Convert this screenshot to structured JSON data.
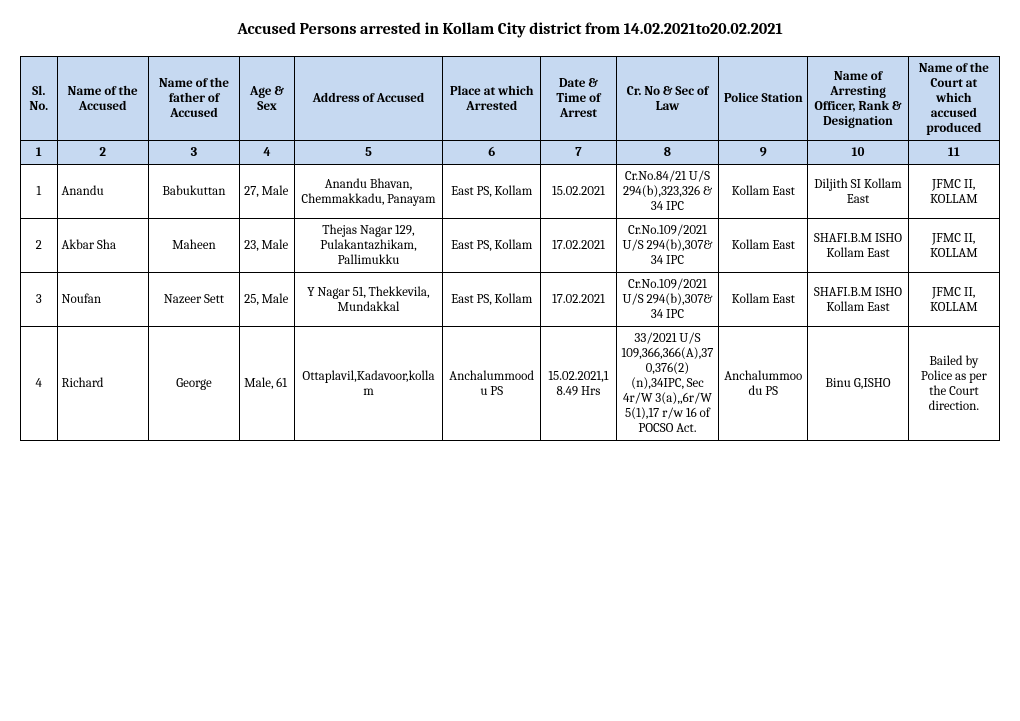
{
  "title": "Accused Persons arrested in   Kollam City   district from  14.02.2021to20.02.2021",
  "columns": [
    "Sl. No.",
    "Name of the Accused",
    "Name of the father of Accused",
    "Age & Sex",
    "Address of Accused",
    "Place at which Arrested",
    "Date & Time of Arrest",
    "Cr. No & Sec of Law",
    "Police Station",
    "Name of Arresting Officer, Rank & Designation",
    "Name of the Court at which accused produced"
  ],
  "colnums": [
    "1",
    "2",
    "3",
    "4",
    "5",
    "6",
    "7",
    "8",
    "9",
    "10",
    "11"
  ],
  "rows": [
    {
      "sl": "1",
      "accused": "Anandu",
      "father": "Babukuttan",
      "age": "27, Male",
      "address": "Anandu Bhavan, Chemmakkadu, Panayam",
      "place": "East PS, Kollam",
      "date": "15.02.2021",
      "crno": "Cr.No.84/21 U/S 294(b),323,326 & 34 IPC",
      "station": "Kollam East",
      "officer": "Diljith SI Kollam East",
      "court": "JFMC II, KOLLAM"
    },
    {
      "sl": "2",
      "accused": "Akbar Sha",
      "father": "Maheen",
      "age": "23, Male",
      "address": "Thejas Nagar 129, Pulakantazhikam, Pallimukku",
      "place": "East PS, Kollam",
      "date": "17.02.2021",
      "crno": "Cr.No.109/2021 U/S 294(b),307& 34 IPC",
      "station": "Kollam East",
      "officer": "SHAFI.B.M ISHO Kollam East",
      "court": "JFMC II, KOLLAM"
    },
    {
      "sl": "3",
      "accused": "Noufan",
      "father": "Nazeer Sett",
      "age": "25, Male",
      "address": "Y Nagar 51, Thekkevila, Mundakkal",
      "place": "East PS, Kollam",
      "date": "17.02.2021",
      "crno": "Cr.No.109/2021 U/S 294(b),307& 34 IPC",
      "station": "Kollam East",
      "officer": "SHAFI.B.M ISHO Kollam East",
      "court": "JFMC II, KOLLAM"
    },
    {
      "sl": "4",
      "accused": "Richard",
      "father": "George",
      "age": "Male, 61",
      "address": "Ottaplavil,Kadavoor,kollam",
      "place": "Anchalummoodu PS",
      "date": "15.02.2021,18.49 Hrs",
      "crno": "33/2021 U/S 109,366,366(A),370,376(2)(n),34IPC, Sec 4r/W 3(a),,6r/W 5(1),17 r/w 16 of POCSO Act.",
      "station": "Anchalummoodu PS",
      "officer": "Binu G,ISHO",
      "court": "Bailed by Police as per the Court direction."
    }
  ]
}
